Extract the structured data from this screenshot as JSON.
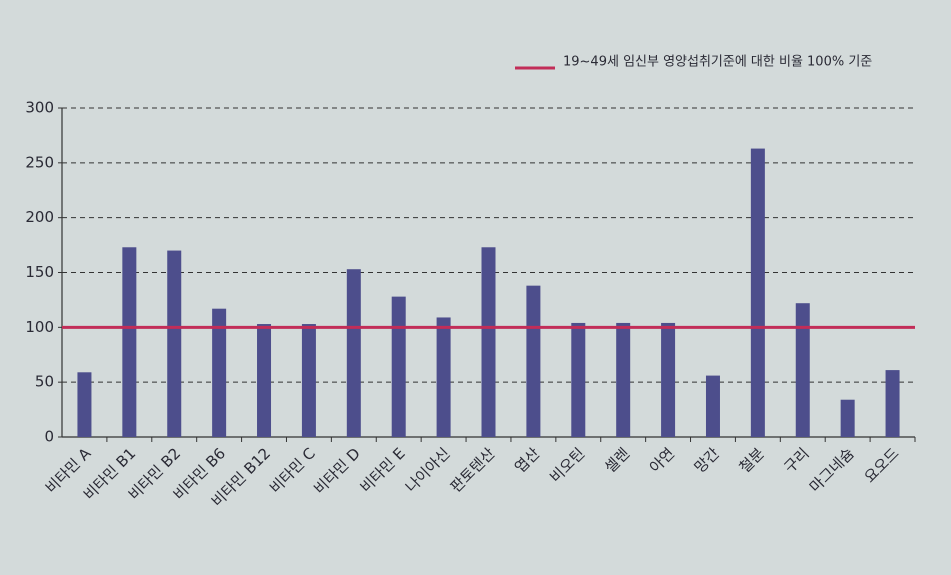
{
  "chart_data": {
    "type": "bar",
    "categories": [
      "비타민 A",
      "비타민 B1",
      "비타민 B2",
      "비타민 B6",
      "비타민 B12",
      "비타민 C",
      "비타민 D",
      "비타민 E",
      "나이아신",
      "판토텐산",
      "엽산",
      "비오틴",
      "셀렌",
      "아연",
      "망간",
      "철분",
      "구리",
      "마그네슘",
      "요오드"
    ],
    "values": [
      59,
      173,
      170,
      117,
      103,
      103,
      153,
      128,
      109,
      173,
      138,
      104,
      104,
      104,
      56,
      263,
      122,
      34,
      61
    ],
    "color": "#4d4e8c",
    "ylim": [
      0,
      300
    ],
    "yticks": [
      0,
      50,
      100,
      150,
      200,
      250,
      300
    ],
    "grid": true,
    "reference_line": {
      "value": 100,
      "label": "19~49세 임신부 영양섭취기준에 대한 비율 100% 기준",
      "color": "#c22d58"
    }
  }
}
